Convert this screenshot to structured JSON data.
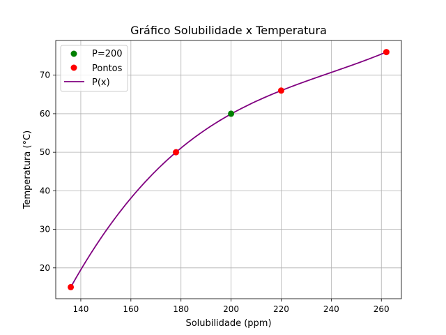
{
  "chart_data": {
    "type": "line",
    "title": "Gráfico Solubilidade x Temperatura",
    "xlabel": "Solubilidade (ppm)",
    "ylabel": "Temperatura (°C)",
    "xlim": [
      130,
      268
    ],
    "ylim": [
      12,
      79
    ],
    "xticks": [
      140,
      160,
      180,
      200,
      220,
      240,
      260
    ],
    "yticks": [
      20,
      30,
      40,
      50,
      60,
      70
    ],
    "xtick_labels": [
      "140",
      "160",
      "180",
      "200",
      "220",
      "240",
      "260"
    ],
    "ytick_labels": [
      "20",
      "30",
      "40",
      "50",
      "60",
      "70"
    ],
    "grid": true,
    "legend_position": "top-left",
    "legend": [
      "P=200",
      "Pontos",
      "P(x)"
    ],
    "series": [
      {
        "name": "Pontos",
        "kind": "scatter",
        "color": "#ff0000",
        "points": [
          [
            136,
            15
          ],
          [
            178,
            50
          ],
          [
            220,
            66
          ],
          [
            262,
            76
          ]
        ]
      },
      {
        "name": "P=200",
        "kind": "scatter",
        "color": "#008000",
        "points": [
          [
            200,
            60
          ]
        ]
      },
      {
        "name": "P(x)",
        "kind": "line",
        "color": "#800080",
        "interpolation_nodes": [
          [
            136,
            15
          ],
          [
            178,
            50
          ],
          [
            220,
            66
          ],
          [
            262,
            76
          ]
        ],
        "x_range": [
          136,
          262
        ]
      }
    ]
  }
}
